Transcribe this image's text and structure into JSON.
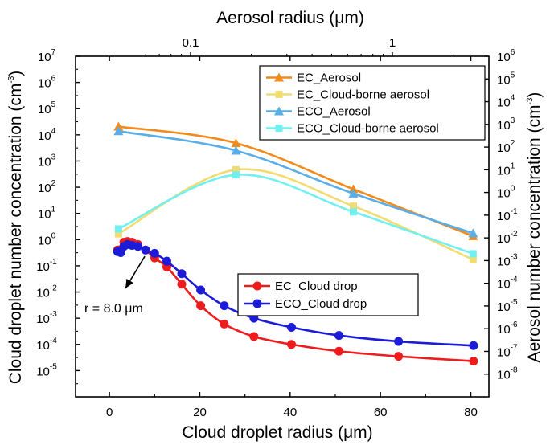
{
  "chart_data": {
    "type": "line",
    "xlabel_bottom": "Cloud droplet radius (μm)",
    "xlabel_top": "Aerosol radius (μm)",
    "ylabel_left": "Cloud droplet number concentration (cm",
    "ylabel_right": "Aerosol number concentration (cm",
    "ylabel_unit_exp": "-3",
    "ylabel_close": ")",
    "xlim_bottom": [
      -7.5,
      84
    ],
    "xticks_bottom": [
      0,
      20,
      40,
      60,
      80
    ],
    "xticks_top": [
      {
        "label": "0.1",
        "x": 0.1
      },
      {
        "label": "1",
        "x": 1
      }
    ],
    "ylim_left_log10": [
      -6,
      7
    ],
    "ylim_right_log10": [
      -9,
      6
    ],
    "yticks_left_exp": [
      -5,
      -4,
      -3,
      -2,
      -1,
      0,
      1,
      2,
      3,
      4,
      5,
      6,
      7
    ],
    "yticks_right_exp": [
      -8,
      -7,
      -6,
      -5,
      -4,
      -3,
      -2,
      -1,
      0,
      1,
      2,
      3,
      4,
      5,
      6
    ],
    "tick_base": "10",
    "annotation": {
      "text": "r = 8.0 μm",
      "x": 8.0,
      "y": 0.35
    },
    "series": [
      {
        "name": "EC_Aerosol",
        "axis": "right",
        "color": "#f28a1c",
        "marker": "triangle",
        "points": [
          [
            2.0,
            800
          ],
          [
            28.0,
            150
          ],
          [
            54.0,
            1.4
          ],
          [
            80.5,
            0.012
          ]
        ]
      },
      {
        "name": "EC_Cloud-borne aerosol",
        "axis": "right",
        "color": "#f2dc72",
        "marker": "square",
        "points": [
          [
            2.0,
            0.015
          ],
          [
            28.0,
            10
          ],
          [
            54.0,
            0.25
          ],
          [
            80.5,
            0.0011
          ]
        ]
      },
      {
        "name": "ECO_Aerosol",
        "axis": "right",
        "color": "#5aaee8",
        "marker": "triangle",
        "points": [
          [
            2.0,
            500
          ],
          [
            28.0,
            70
          ],
          [
            54.0,
            0.9
          ],
          [
            80.5,
            0.016
          ]
        ]
      },
      {
        "name": "ECO_Cloud-borne aerosol",
        "axis": "right",
        "color": "#72f0f0",
        "marker": "square",
        "points": [
          [
            2.0,
            0.025
          ],
          [
            28.0,
            6
          ],
          [
            54.0,
            0.14
          ],
          [
            80.5,
            0.002
          ]
        ]
      },
      {
        "name": "EC_Cloud drop",
        "axis": "left",
        "color": "#ee1c1c",
        "marker": "circle",
        "points": [
          [
            1.8,
            0.4
          ],
          [
            2.5,
            0.42
          ],
          [
            3.2,
            0.8
          ],
          [
            4.0,
            0.85
          ],
          [
            5.0,
            0.8
          ],
          [
            6.3,
            0.65
          ],
          [
            8.0,
            0.4
          ],
          [
            10.0,
            0.2
          ],
          [
            12.7,
            0.09
          ],
          [
            16.0,
            0.02
          ],
          [
            20.2,
            0.003
          ],
          [
            25.4,
            0.0006
          ],
          [
            32.0,
            0.0002
          ],
          [
            40.3,
            0.0001
          ],
          [
            50.8,
            5.5e-05
          ],
          [
            64.0,
            3.5e-05
          ],
          [
            80.6,
            2.3e-05
          ]
        ]
      },
      {
        "name": "ECO_Cloud drop",
        "axis": "left",
        "color": "#1c1cd8",
        "marker": "circle",
        "points": [
          [
            1.8,
            0.35
          ],
          [
            2.5,
            0.32
          ],
          [
            3.2,
            0.55
          ],
          [
            4.0,
            0.65
          ],
          [
            5.0,
            0.6
          ],
          [
            6.3,
            0.55
          ],
          [
            8.0,
            0.4
          ],
          [
            10.0,
            0.3
          ],
          [
            12.7,
            0.15
          ],
          [
            16.0,
            0.05
          ],
          [
            20.2,
            0.012
          ],
          [
            25.4,
            0.003
          ],
          [
            32.0,
            0.001
          ],
          [
            40.3,
            0.00045
          ],
          [
            50.8,
            0.00022
          ],
          [
            64.0,
            0.00013
          ],
          [
            80.6,
            9e-05
          ]
        ]
      }
    ],
    "legend_upper": [
      "EC_Aerosol",
      "EC_Cloud-borne aerosol",
      "ECO_Aerosol",
      "ECO_Cloud-borne aerosol"
    ],
    "legend_lower": [
      "EC_Cloud drop",
      "ECO_Cloud drop"
    ],
    "grid": false
  }
}
